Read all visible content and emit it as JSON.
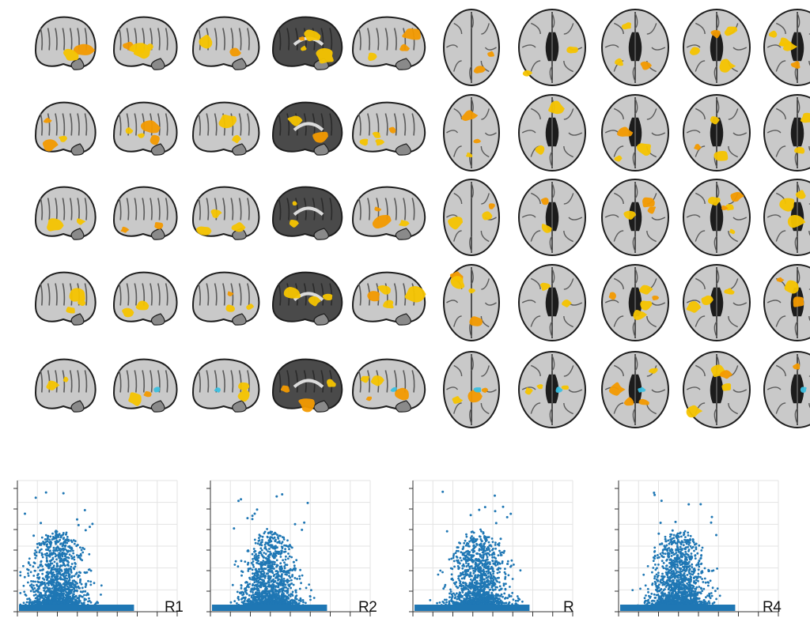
{
  "brain_figure": {
    "rows": 5,
    "columns": 10,
    "column_views": [
      "sagittal",
      "sagittal",
      "sagittal",
      "sagittal",
      "sagittal",
      "axial",
      "axial",
      "axial",
      "axial",
      "axial"
    ],
    "colors": {
      "positive": "#f5c400",
      "positive_strong": "#f39a00",
      "negative": "#3cc0e0",
      "brain_light": "#c9c9c9",
      "brain_dark": "#4a4a4a",
      "outline": "#1e1e1e"
    }
  },
  "scatter_panels": [
    {
      "label": "R1",
      "seed": 11,
      "skew": 0.3,
      "peak": 0.92
    },
    {
      "label": "R2",
      "seed": 23,
      "skew": 0.45,
      "peak": 0.98
    },
    {
      "label": "R",
      "seed": 37,
      "skew": 0.5,
      "peak": 0.98
    },
    {
      "label": "R4",
      "seed": 53,
      "skew": 0.45,
      "peak": 0.95
    }
  ],
  "scatter_style": {
    "point_color": "#1f77b4",
    "grid_color": "#e3e3e3"
  }
}
